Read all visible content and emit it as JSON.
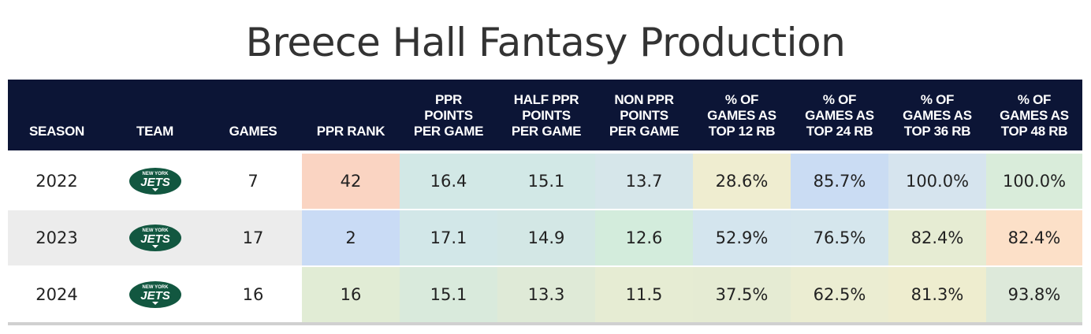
{
  "title": "Breece Hall Fantasy Production",
  "headers": [
    [
      "SEASON"
    ],
    [
      "TEAM"
    ],
    [
      "GAMES"
    ],
    [
      "PPR RANK"
    ],
    [
      "PPR",
      "POINTS",
      "PER GAME"
    ],
    [
      "HALF PPR",
      "POINTS",
      "PER GAME"
    ],
    [
      "NON PPR",
      "POINTS",
      "PER GAME"
    ],
    [
      "% OF",
      "GAMES AS",
      "TOP 12 RB"
    ],
    [
      "% OF",
      "GAMES AS",
      "TOP 24 RB"
    ],
    [
      "% OF",
      "GAMES AS",
      "TOP 36 RB"
    ],
    [
      "% OF",
      "GAMES AS",
      "TOP 48 RB"
    ]
  ],
  "logo": {
    "icon": "new-york-jets-logo-icon",
    "line1": "NEW YORK",
    "line2": "JETS",
    "color": "#125740"
  },
  "rows": [
    {
      "season": "2022",
      "games": "7",
      "ppr_rank": "42",
      "ppr": "16.4",
      "half": "15.1",
      "non": "13.7",
      "top12": "28.6%",
      "top24": "85.7%",
      "top36": "100.0%",
      "top48": "100.0%",
      "colors": [
        "#fad4c2",
        "#d2e8e6",
        "#d2e8e6",
        "#d6e6ea",
        "#efedd0",
        "#cadcf3",
        "#d6e4ee",
        "#d9ecda"
      ]
    },
    {
      "season": "2023",
      "games": "17",
      "ppr_rank": "2",
      "ppr": "17.1",
      "half": "14.9",
      "non": "12.6",
      "top12": "52.9%",
      "top24": "76.5%",
      "top36": "82.4%",
      "top48": "82.4%",
      "colors": [
        "#c9dbf5",
        "#d2e7e8",
        "#d3e7e5",
        "#d3ecdc",
        "#d4e5ee",
        "#d5e6ed",
        "#e6ecd3",
        "#fce0c8"
      ]
    },
    {
      "season": "2024",
      "games": "16",
      "ppr_rank": "16",
      "ppr": "15.1",
      "half": "13.3",
      "non": "11.5",
      "top12": "37.5%",
      "top24": "62.5%",
      "top36": "81.3%",
      "top48": "93.8%",
      "colors": [
        "#e1ecd5",
        "#d9eadc",
        "#dfead7",
        "#e6ecd3",
        "#e5ebd3",
        "#ebedd2",
        "#eeedcf",
        "#dde9da"
      ]
    }
  ]
}
